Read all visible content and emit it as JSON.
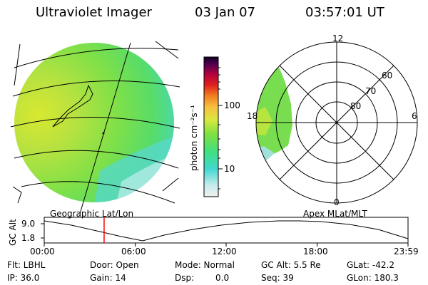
{
  "header": {
    "title": "Ultraviolet Imager",
    "date": "03 Jan 07",
    "time": "03:57:01 UT"
  },
  "colorbar": {
    "unit_label": "photon cm⁻²s⁻¹",
    "ticks": [
      {
        "label": "100",
        "value": 100
      },
      {
        "label": "10",
        "value": 10
      }
    ]
  },
  "left_panel": {
    "caption": "Geographic Lat/Lon"
  },
  "right_panel": {
    "caption": "Apex MLat/MLT",
    "mlt_labels": {
      "top": "12",
      "bottom": "0",
      "left": "18",
      "right": "6"
    },
    "mlat_labels": [
      "60",
      "70",
      "80"
    ]
  },
  "altitude_plot": {
    "ylabel": "GC Alt",
    "yticks": [
      "9.0",
      "1.8"
    ],
    "xticks": [
      "00:00",
      "06:00",
      "12:00",
      "18:00",
      "23:59"
    ],
    "current_time_hours": 3.95
  },
  "status": {
    "filter": "Flt: LBHL",
    "door": "Door: Open",
    "mode": "Mode: Normal",
    "gc_alt": "GC Alt: 5.5 Re",
    "glat": "GLat: -42.2",
    "ip": "IP: 36.0",
    "gain": "Gain: 14",
    "dsp_label": "Dsp:",
    "dsp_value": "0.0",
    "seq": "Seq: 39",
    "glon": "GLon: 180.3"
  },
  "colors": {
    "background": "#ffffff",
    "marker": "#ff0000",
    "line": "#000000"
  }
}
